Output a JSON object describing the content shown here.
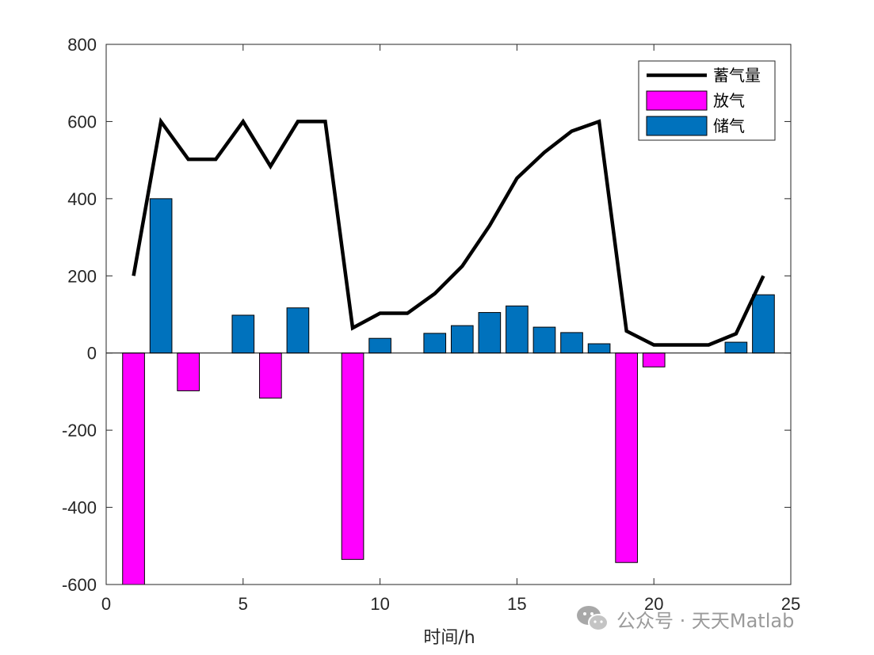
{
  "chart_data": {
    "type": "bar",
    "title": "",
    "xlabel": "时间/h",
    "ylabel": "",
    "xlim": [
      0,
      25
    ],
    "ylim": [
      -600,
      800
    ],
    "xticks": [
      0,
      5,
      10,
      15,
      20,
      25
    ],
    "yticks": [
      -600,
      -400,
      -200,
      0,
      200,
      400,
      600,
      800
    ],
    "grid": false,
    "legend_position": "top-right",
    "x": [
      1,
      2,
      3,
      4,
      5,
      6,
      7,
      8,
      9,
      10,
      11,
      12,
      13,
      14,
      15,
      16,
      17,
      18,
      19,
      20,
      21,
      22,
      23,
      24
    ],
    "series": [
      {
        "name": "蓄气量",
        "type": "line",
        "color": "#000000",
        "values": [
          200,
          600,
          502,
          502,
          600,
          484,
          600,
          600,
          65,
          103,
          103,
          154,
          225,
          330,
          453,
          520,
          575,
          600,
          57,
          21,
          21,
          21,
          50,
          200
        ]
      },
      {
        "name": "放气",
        "type": "bar",
        "color": "#FF00FF",
        "values": [
          -600,
          0,
          -98,
          0,
          0,
          -117,
          0,
          0,
          -535,
          0,
          0,
          0,
          0,
          0,
          0,
          0,
          0,
          0,
          -543,
          -36,
          0,
          0,
          0,
          0
        ]
      },
      {
        "name": "储气",
        "type": "bar",
        "color": "#0072BD",
        "values": [
          0,
          400,
          0,
          0,
          98,
          0,
          117,
          0,
          0,
          38,
          0,
          51,
          71,
          105,
          122,
          67,
          53,
          24,
          0,
          0,
          0,
          0,
          28,
          151
        ]
      }
    ]
  },
  "watermark": {
    "icon": "wechat-icon",
    "text": "公众号 · 天天Matlab"
  }
}
